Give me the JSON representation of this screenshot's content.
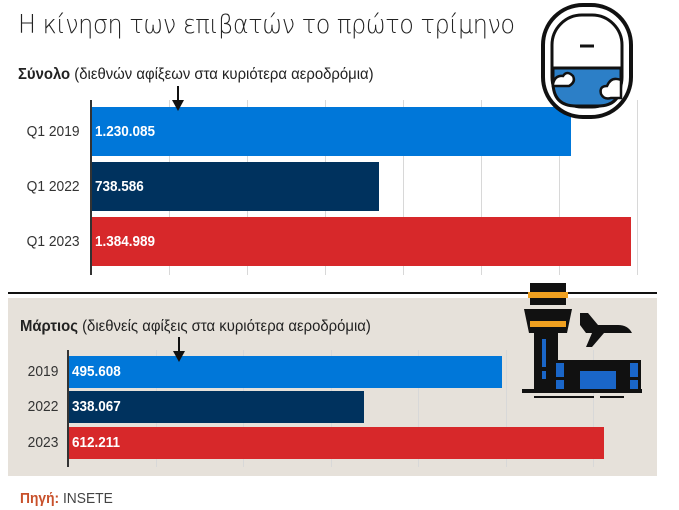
{
  "title": "Η κίνηση των επιβατών το πρώτο τρίμηνο",
  "source": {
    "label": "Πηγή:",
    "value": "INSETE"
  },
  "icons": [
    "airplane-window-icon",
    "airport-control-tower-icon"
  ],
  "colors": {
    "2019": "#0077d9",
    "2022": "#00325e",
    "2023": "#d7282a",
    "panel_bg": "#e6e1da",
    "source_label": "#c8502a"
  },
  "chart_data": [
    {
      "type": "bar",
      "orientation": "horizontal",
      "title_bold": "Σύνολο",
      "title_rest": "(διεθνών αφίξεων στα κυριότερα αεροδρόμια)",
      "categories": [
        "Q1 2019",
        "Q1 2022",
        "Q1 2023"
      ],
      "values": [
        1230085,
        738586,
        1384989
      ],
      "labels": [
        "1.230.085",
        "738.586",
        "1.384.989"
      ],
      "xlim": [
        0,
        1400000
      ],
      "grid_step": 200000,
      "grid": true
    },
    {
      "type": "bar",
      "orientation": "horizontal",
      "title_bold": "Μάρτιος",
      "title_rest": "(διεθνείς αφίξεις στα κυριότερα αεροδρόμια)",
      "categories": [
        "2019",
        "2022",
        "2023"
      ],
      "values": [
        495608,
        338067,
        612211
      ],
      "labels": [
        "495.608",
        "338.067",
        "612.211"
      ],
      "xlim": [
        0,
        600000
      ],
      "grid_step": 100000,
      "grid": true
    }
  ]
}
